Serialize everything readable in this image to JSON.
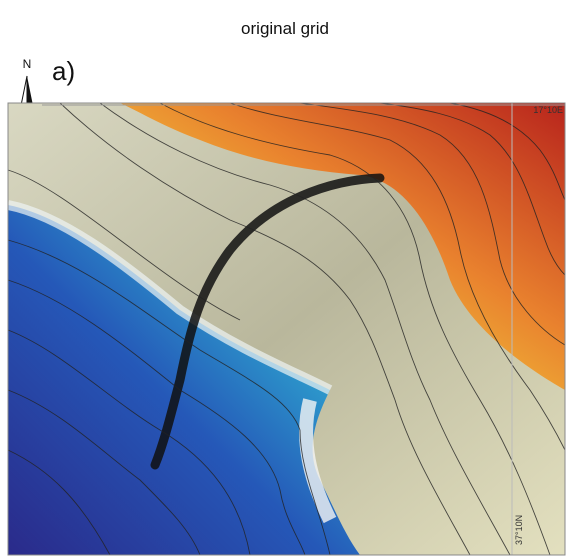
{
  "title": "original grid",
  "panel_label": "a)",
  "north_label": "N",
  "coordinates": {
    "top_right": "17°10E",
    "right_side": "37°10N"
  }
}
